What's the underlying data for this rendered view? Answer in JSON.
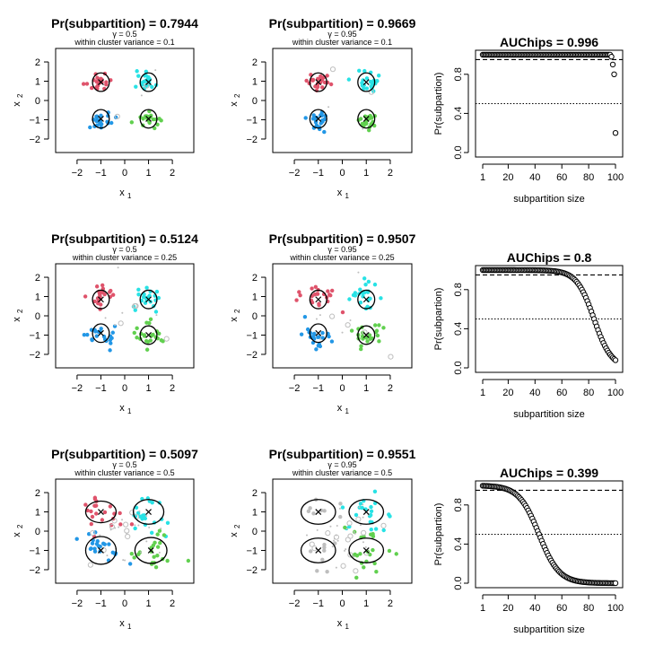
{
  "colors": {
    "red": "#DF536B",
    "cyan": "#28E2E5",
    "blue": "#2297E6",
    "green": "#61D04F",
    "grey": "#BEBEBE"
  },
  "rows": [
    {
      "scatter_left": {
        "title": "Pr(subpartition) = 0.7944",
        "gamma": "γ = 0.5",
        "variance": "within cluster variance =  0.1",
        "xlabel": "x",
        "ylabel": "x",
        "x_ticks": [
          "−2",
          "−1",
          "0",
          "1",
          "2"
        ],
        "y_ticks": [
          "−2",
          "−1",
          "0",
          "1",
          "2"
        ]
      },
      "scatter_right": {
        "title": "Pr(subpartition) = 0.9669",
        "gamma": "γ = 0.95",
        "variance": "within cluster variance =  0.1",
        "xlabel": "x",
        "ylabel": "x",
        "x_ticks": [
          "−2",
          "−1",
          "0",
          "1",
          "2"
        ],
        "y_ticks": [
          "−2",
          "−1",
          "0",
          "1",
          "2"
        ]
      },
      "auc": {
        "title": "AUChips = 0.996",
        "xlabel": "subpartition size",
        "ylabel": "Pr(subpartion)",
        "x_ticks": [
          "1",
          "20",
          "40",
          "60",
          "80",
          "100"
        ],
        "y_ticks": [
          "0.0",
          "0.4",
          "0.8"
        ]
      }
    },
    {
      "scatter_left": {
        "title": "Pr(subpartition) = 0.5124",
        "gamma": "γ = 0.5",
        "variance": "within cluster variance =  0.25",
        "xlabel": "x",
        "ylabel": "x",
        "x_ticks": [
          "−2",
          "−1",
          "0",
          "1",
          "2"
        ],
        "y_ticks": [
          "−2",
          "−1",
          "0",
          "1",
          "2"
        ]
      },
      "scatter_right": {
        "title": "Pr(subpartition) = 0.9507",
        "gamma": "γ = 0.95",
        "variance": "within cluster variance =  0.25",
        "xlabel": "x",
        "ylabel": "x",
        "x_ticks": [
          "−2",
          "−1",
          "0",
          "1",
          "2"
        ],
        "y_ticks": [
          "−2",
          "−1",
          "0",
          "1",
          "2"
        ]
      },
      "auc": {
        "title": "AUChips = 0.8",
        "xlabel": "subpartition size",
        "ylabel": "Pr(subpartion)",
        "x_ticks": [
          "1",
          "20",
          "40",
          "60",
          "80",
          "100"
        ],
        "y_ticks": [
          "0.0",
          "0.4",
          "0.8"
        ]
      }
    },
    {
      "scatter_left": {
        "title": "Pr(subpartition) = 0.5097",
        "gamma": "γ = 0.5",
        "variance": "within cluster variance =  0.5",
        "xlabel": "x",
        "ylabel": "x",
        "x_ticks": [
          "−2",
          "−1",
          "0",
          "1",
          "2"
        ],
        "y_ticks": [
          "−2",
          "−1",
          "0",
          "1",
          "2"
        ]
      },
      "scatter_right": {
        "title": "Pr(subpartition) = 0.9551",
        "gamma": "γ = 0.95",
        "variance": "within cluster variance =  0.5",
        "xlabel": "x",
        "ylabel": "x",
        "x_ticks": [
          "−2",
          "−1",
          "0",
          "1",
          "2"
        ],
        "y_ticks": [
          "−2",
          "−1",
          "0",
          "1",
          "2"
        ]
      },
      "auc": {
        "title": "AUChips = 0.399",
        "xlabel": "subpartition size",
        "ylabel": "Pr(subpartion)",
        "x_ticks": [
          "1",
          "20",
          "40",
          "60",
          "80",
          "100"
        ],
        "y_ticks": [
          "0.0",
          "0.4",
          "0.8"
        ]
      }
    }
  ],
  "chart_data": [
    {
      "type": "scatter",
      "title": "Pr(subpartition) = 0.7944",
      "xlim": [
        -2.9,
        2.9
      ],
      "ylim": [
        -2.7,
        2.7
      ],
      "spread": 0.32,
      "noise_points": 4,
      "centers": [
        [
          -1,
          1
        ],
        [
          1,
          1
        ],
        [
          -1,
          -1
        ],
        [
          1,
          -1
        ]
      ],
      "ellipses": [
        {
          "x": -1,
          "y": 0.95,
          "rx": 0.22,
          "ry": 0.3
        },
        {
          "x": 1,
          "y": 0.95,
          "rx": 0.22,
          "ry": 0.3
        },
        {
          "x": -1,
          "y": -0.95,
          "rx": 0.22,
          "ry": 0.3
        },
        {
          "x": 1,
          "y": -0.95,
          "rx": 0.22,
          "ry": 0.3
        }
      ],
      "colored_clusters": [
        true,
        true,
        true,
        true
      ]
    },
    {
      "type": "scatter",
      "title": "Pr(subpartition) = 0.9669",
      "xlim": [
        -2.9,
        2.9
      ],
      "ylim": [
        -2.7,
        2.7
      ],
      "spread": 0.32,
      "noise_points": 4,
      "centers": [
        [
          -1,
          1
        ],
        [
          1,
          1
        ],
        [
          -1,
          -1
        ],
        [
          1,
          -1
        ]
      ],
      "ellipses": [
        {
          "x": -1,
          "y": 0.95,
          "rx": 0.22,
          "ry": 0.3
        },
        {
          "x": 1,
          "y": 0.95,
          "rx": 0.22,
          "ry": 0.3
        },
        {
          "x": -1,
          "y": -0.95,
          "rx": 0.22,
          "ry": 0.3
        },
        {
          "x": 1,
          "y": -0.95,
          "rx": 0.22,
          "ry": 0.3
        }
      ],
      "colored_clusters": [
        true,
        true,
        true,
        true
      ]
    },
    {
      "type": "line",
      "title": "AUChips = 0.996",
      "xlabel": "subpartition size",
      "ylabel": "Pr(subpartion)",
      "xlim": [
        1,
        100
      ],
      "ylim": [
        0,
        1
      ],
      "curve": {
        "kind": "near_one_then_drop",
        "tail": [
          0.98,
          0.9,
          0.8,
          0.2
        ]
      },
      "hlines": [
        {
          "y": 0.95,
          "style": "dashed"
        },
        {
          "y": 0.5,
          "style": "dotted"
        }
      ]
    },
    {
      "type": "scatter",
      "title": "Pr(subpartition) = 0.5124",
      "xlim": [
        -2.9,
        2.9
      ],
      "ylim": [
        -2.7,
        2.7
      ],
      "spread": 0.45,
      "noise_points": 10,
      "centers": [
        [
          -1,
          1
        ],
        [
          1,
          1
        ],
        [
          -1,
          -1
        ],
        [
          1,
          -1
        ]
      ],
      "ellipses": [
        {
          "x": -1,
          "y": 0.85,
          "rx": 0.22,
          "ry": 0.3
        },
        {
          "x": 1,
          "y": 0.85,
          "rx": 0.22,
          "ry": 0.3
        },
        {
          "x": -1,
          "y": -0.9,
          "rx": 0.22,
          "ry": 0.3
        },
        {
          "x": 1,
          "y": -1.0,
          "rx": 0.22,
          "ry": 0.3
        }
      ],
      "colored_clusters": [
        true,
        true,
        true,
        true
      ]
    },
    {
      "type": "scatter",
      "title": "Pr(subpartition) = 0.9507",
      "xlim": [
        -2.9,
        2.9
      ],
      "ylim": [
        -2.7,
        2.7
      ],
      "spread": 0.45,
      "noise_points": 10,
      "centers": [
        [
          -1,
          1
        ],
        [
          1,
          1
        ],
        [
          -1,
          -1
        ],
        [
          1,
          -1
        ]
      ],
      "ellipses": [
        {
          "x": -1,
          "y": 0.85,
          "rx": 0.22,
          "ry": 0.3
        },
        {
          "x": 1,
          "y": 0.85,
          "rx": 0.22,
          "ry": 0.3
        },
        {
          "x": -1,
          "y": -0.9,
          "rx": 0.22,
          "ry": 0.3
        },
        {
          "x": 1,
          "y": -1.0,
          "rx": 0.22,
          "ry": 0.3
        }
      ],
      "colored_clusters": [
        true,
        true,
        true,
        true
      ]
    },
    {
      "type": "line",
      "title": "AUChips = 0.8",
      "xlabel": "subpartition size",
      "ylabel": "Pr(subpartion)",
      "xlim": [
        1,
        100
      ],
      "ylim": [
        0,
        1
      ],
      "curve": {
        "kind": "logistic",
        "midpoint": 84,
        "scale": 6.5
      },
      "hlines": [
        {
          "y": 0.95,
          "style": "dashed"
        },
        {
          "y": 0.5,
          "style": "dotted"
        }
      ]
    },
    {
      "type": "scatter",
      "title": "Pr(subpartition) = 0.5097",
      "xlim": [
        -2.9,
        2.9
      ],
      "ylim": [
        -2.7,
        2.7
      ],
      "spread": 0.7,
      "noise_points": 30,
      "centers": [
        [
          -1,
          1
        ],
        [
          1,
          1
        ],
        [
          -1,
          -1
        ],
        [
          1,
          -1
        ]
      ],
      "ellipses": [
        {
          "x": -1,
          "y": 1.0,
          "rx": 0.4,
          "ry": 0.35
        },
        {
          "x": 1,
          "y": 1.0,
          "rx": 0.4,
          "ry": 0.4
        },
        {
          "x": -1,
          "y": -1.0,
          "rx": 0.4,
          "ry": 0.45
        },
        {
          "x": 1.1,
          "y": -1.0,
          "rx": 0.42,
          "ry": 0.42
        }
      ],
      "colored_clusters": [
        true,
        true,
        true,
        true
      ]
    },
    {
      "type": "scatter",
      "title": "Pr(subpartition) = 0.9551",
      "xlim": [
        -2.9,
        2.9
      ],
      "ylim": [
        -2.7,
        2.7
      ],
      "spread": 0.7,
      "noise_points": 40,
      "centers": [
        [
          -1,
          1
        ],
        [
          1,
          1
        ],
        [
          -1,
          -1
        ],
        [
          1,
          -1
        ]
      ],
      "ellipses": [
        {
          "x": -1,
          "y": 1.0,
          "rx": 0.45,
          "ry": 0.4
        },
        {
          "x": 1,
          "y": 1.0,
          "rx": 0.45,
          "ry": 0.4
        },
        {
          "x": -1,
          "y": -1.0,
          "rx": 0.45,
          "ry": 0.4
        },
        {
          "x": 1,
          "y": -1.0,
          "rx": 0.45,
          "ry": 0.4
        }
      ],
      "colored_clusters": [
        false,
        true,
        false,
        true
      ]
    },
    {
      "type": "line",
      "title": "AUChips = 0.399",
      "xlabel": "subpartition size",
      "ylabel": "Pr(subpartion)",
      "xlim": [
        1,
        100
      ],
      "ylim": [
        0,
        1
      ],
      "curve": {
        "kind": "logistic",
        "midpoint": 43,
        "scale": 7.5
      },
      "hlines": [
        {
          "y": 0.95,
          "style": "dashed"
        },
        {
          "y": 0.5,
          "style": "dotted"
        }
      ]
    }
  ]
}
